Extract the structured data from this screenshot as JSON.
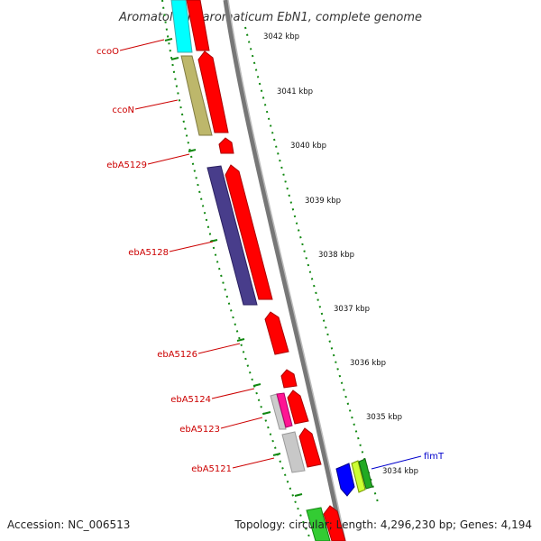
{
  "title": "Aromatoleum aromaticum EbN1, complete genome",
  "footer": {
    "accession": "Accession: NC_006513",
    "summary": "Topology: circular; Length: 4,296,230 bp; Genes: 4,194"
  },
  "colors": {
    "gene_label": "#cc0000",
    "gene_label_blue": "#0000cc",
    "forward_arrow": "#ff0000",
    "backbone": "#888888",
    "tick": "#007700"
  },
  "ruler": [
    {
      "label": "3042 kbp"
    },
    {
      "label": "3041 kbp"
    },
    {
      "label": "3040 kbp"
    },
    {
      "label": "3039 kbp"
    },
    {
      "label": "3038 kbp"
    },
    {
      "label": "3037 kbp"
    },
    {
      "label": "3036 kbp"
    },
    {
      "label": "3035 kbp"
    },
    {
      "label": "3034 kbp"
    }
  ],
  "gene_labels": [
    {
      "name": "ccoO"
    },
    {
      "name": "ccoN"
    },
    {
      "name": "ebA5129"
    },
    {
      "name": "ebA5128"
    },
    {
      "name": "ebA5126"
    },
    {
      "name": "ebA5124"
    },
    {
      "name": "ebA5123"
    },
    {
      "name": "ebA5121"
    },
    {
      "name": "fimT"
    }
  ]
}
